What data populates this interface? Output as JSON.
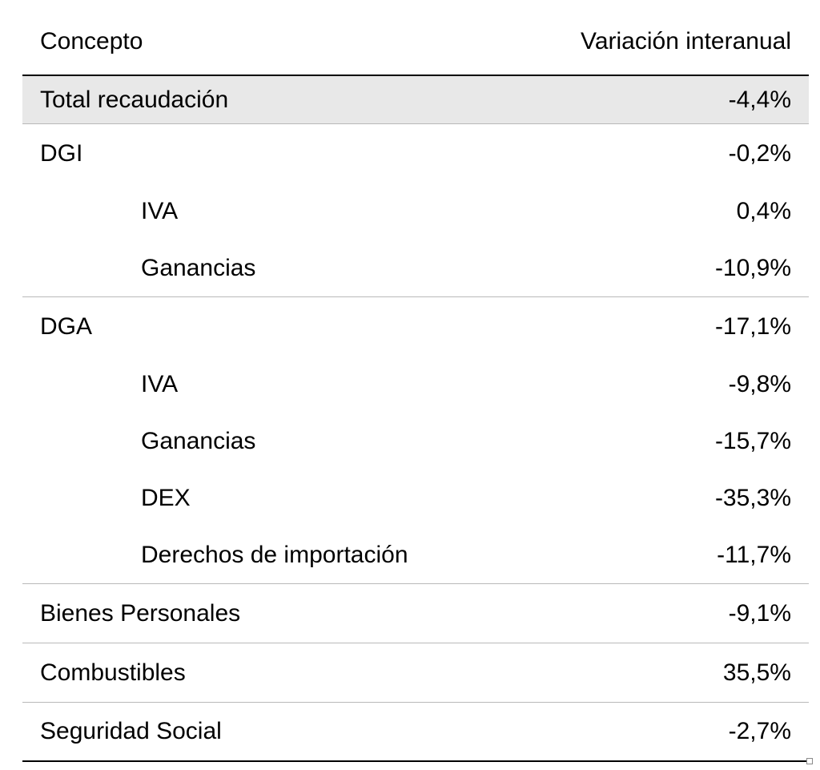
{
  "table": {
    "header": {
      "concept": "Concepto",
      "variation": "Variación interanual"
    },
    "rows": [
      {
        "concept": "Total recaudación",
        "value": "-4,4%"
      },
      {
        "concept": "DGI",
        "value": "-0,2%"
      },
      {
        "concept": "IVA",
        "value": "0,4%"
      },
      {
        "concept": "Ganancias",
        "value": "-10,9%"
      },
      {
        "concept": "DGA",
        "value": "-17,1%"
      },
      {
        "concept": "IVA",
        "value": "-9,8%"
      },
      {
        "concept": "Ganancias",
        "value": "-15,7%"
      },
      {
        "concept": "DEX",
        "value": "-35,3%"
      },
      {
        "concept": "Derechos de importación",
        "value": "-11,7%"
      },
      {
        "concept": "Bienes Personales",
        "value": "-9,1%"
      },
      {
        "concept": "Combustibles",
        "value": "35,5%"
      },
      {
        "concept": "Seguridad Social",
        "value": "-2,7%"
      }
    ]
  },
  "colors": {
    "highlight_row": "#e8e8e8",
    "rule_dark": "#000000",
    "rule_light": "#b9b9b9"
  }
}
